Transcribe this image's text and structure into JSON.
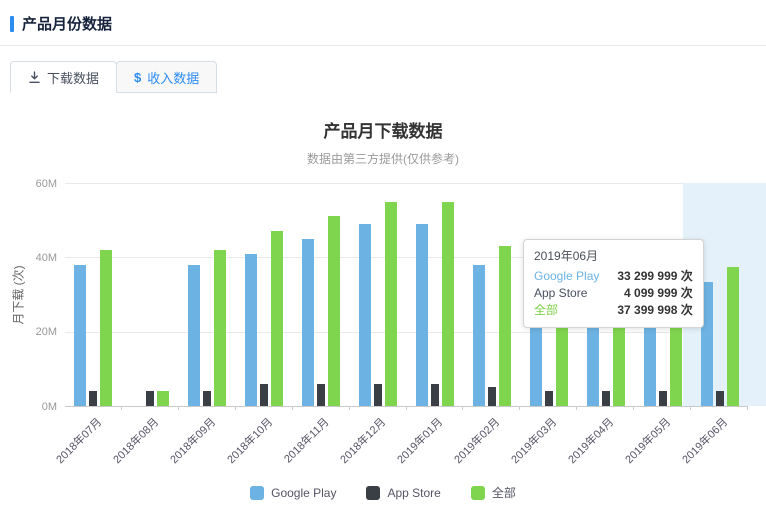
{
  "page": {
    "title": "产品月份数据"
  },
  "tabs": [
    {
      "id": "download",
      "label": "下载数据",
      "active": true
    },
    {
      "id": "revenue",
      "label": "收入数据",
      "icon_char": "$",
      "active": false
    }
  ],
  "chart_data": {
    "type": "bar",
    "title": "产品月下载数据",
    "subtitle": "数据由第三方提供(仅供参考)",
    "ylabel": "月下载 (次)",
    "unit": "M (millions of downloads)",
    "ylim_m": [
      0,
      60
    ],
    "yticks": [
      "60M",
      "40M",
      "20M",
      "0M"
    ],
    "grid": true,
    "legend_position": "bottom",
    "categories": [
      "2018年07月",
      "2018年08月",
      "2018年09月",
      "2018年10月",
      "2018年11月",
      "2018年12月",
      "2019年01月",
      "2019年02月",
      "2019年03月",
      "2019年04月",
      "2019年05月",
      "2019年06月"
    ],
    "series": [
      {
        "name": "Google Play",
        "color": "#6cb2e2",
        "values_m": [
          38,
          0,
          38,
          41,
          45,
          49,
          49,
          38,
          40,
          35,
          34,
          33.3
        ]
      },
      {
        "name": "App Store",
        "color": "#3a3f46",
        "values_m": [
          4,
          4,
          4,
          6,
          6,
          6,
          6,
          5,
          4,
          4,
          4,
          4.1
        ]
      },
      {
        "name": "全部",
        "color": "#80d54e",
        "values_m": [
          42,
          4,
          42,
          47,
          51,
          55,
          55,
          43,
          44,
          39,
          38,
          37.4
        ]
      }
    ],
    "highlight_category": "2019年06月"
  },
  "tooltip": {
    "title": "2019年06月",
    "rows": [
      {
        "label": "Google Play",
        "value": "33 299 999 次",
        "label_color": "#6cb2e2"
      },
      {
        "label": "App Store",
        "value": "4 099 999 次",
        "label_color": "#495060"
      },
      {
        "label": "全部",
        "value": "37 399 998 次",
        "label_color": "#7cd14a"
      }
    ]
  },
  "legend": [
    {
      "label": "Google Play",
      "color": "#6cb2e2"
    },
    {
      "label": "App Store",
      "color": "#3a3f46"
    },
    {
      "label": "全部",
      "color": "#80d54e"
    }
  ]
}
